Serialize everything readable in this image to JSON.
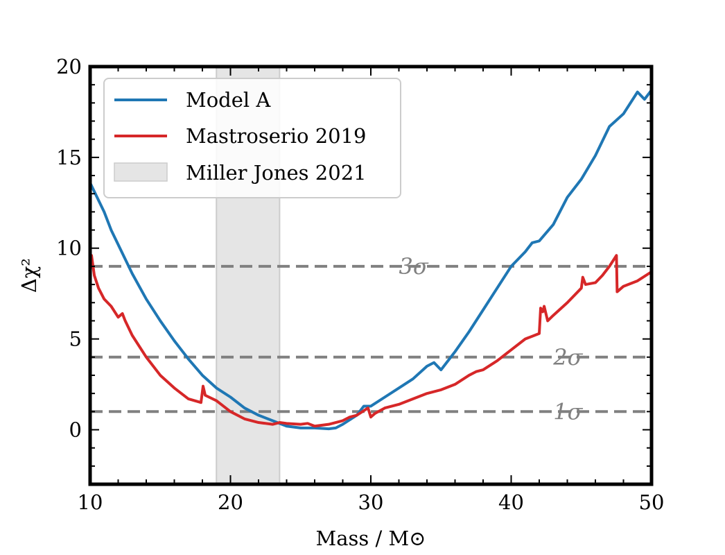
{
  "chart_data": {
    "type": "line",
    "title": "",
    "xlabel": "Mass / M⊙",
    "ylabel": "Δχ²",
    "xlim": [
      10,
      50
    ],
    "ylim": [
      -3,
      20
    ],
    "xticks": [
      10,
      20,
      30,
      40,
      50
    ],
    "yticks": [
      0,
      5,
      10,
      15,
      20
    ],
    "grid": false,
    "legend_position": "top-left",
    "series": [
      {
        "name": "Model A",
        "color": "#1f77b4",
        "x": [
          10,
          10.5,
          11,
          11.5,
          12,
          13,
          14,
          15,
          16,
          17,
          18,
          19,
          20,
          21,
          22,
          23,
          24,
          25,
          26,
          27,
          27.5,
          28,
          29,
          29.5,
          30,
          31,
          32,
          33,
          34,
          34.5,
          35,
          36,
          37,
          38,
          39,
          40,
          41,
          41.5,
          42,
          43,
          44,
          45,
          46,
          47,
          48,
          49,
          49.5,
          50
        ],
        "y": [
          13.6,
          12.8,
          12.0,
          11.0,
          10.2,
          8.6,
          7.2,
          6.0,
          4.9,
          3.9,
          3.0,
          2.3,
          1.8,
          1.2,
          0.8,
          0.5,
          0.2,
          0.1,
          0.1,
          0.05,
          0.1,
          0.3,
          0.8,
          1.3,
          1.3,
          1.8,
          2.3,
          2.8,
          3.5,
          3.7,
          3.3,
          4.3,
          5.4,
          6.6,
          7.8,
          9.0,
          9.8,
          10.3,
          10.4,
          11.3,
          12.8,
          13.8,
          15.1,
          16.7,
          17.4,
          18.6,
          18.2,
          18.7
        ]
      },
      {
        "name": "Mastroserio 2019",
        "color": "#d62728",
        "x": [
          10,
          10.1,
          10.3,
          10.6,
          11,
          11.5,
          12,
          12.3,
          12.5,
          13,
          14,
          15,
          16,
          17,
          17.9,
          18.05,
          18.2,
          19,
          20,
          21,
          22,
          23,
          23.5,
          24,
          25,
          25.5,
          26,
          27,
          28,
          28.5,
          29,
          29.8,
          30,
          30.3,
          31,
          32,
          33,
          34,
          35,
          36,
          37,
          37.5,
          38,
          39,
          40,
          41,
          42,
          42.1,
          42.25,
          42.35,
          42.6,
          43,
          44,
          45,
          45.1,
          45.3,
          46,
          46.5,
          47,
          47.5,
          47.55,
          47.7,
          48,
          49,
          50
        ],
        "y": [
          9.0,
          9.6,
          8.5,
          7.8,
          7.2,
          6.8,
          6.2,
          6.4,
          6.0,
          5.2,
          4.0,
          3.0,
          2.3,
          1.7,
          1.5,
          2.4,
          1.9,
          1.6,
          1.0,
          0.6,
          0.4,
          0.3,
          0.4,
          0.35,
          0.3,
          0.35,
          0.2,
          0.3,
          0.5,
          0.7,
          0.8,
          1.2,
          0.7,
          0.9,
          1.2,
          1.4,
          1.7,
          2.0,
          2.2,
          2.5,
          3.0,
          3.2,
          3.3,
          3.8,
          4.4,
          5.0,
          5.3,
          6.7,
          6.5,
          6.8,
          6.0,
          6.3,
          7.0,
          7.8,
          8.4,
          8.0,
          8.1,
          8.5,
          9.0,
          9.6,
          7.6,
          7.7,
          7.9,
          8.2,
          8.7
        ]
      }
    ],
    "shaded_region": {
      "label": "Miller Jones 2021",
      "x_range": [
        19,
        23.5
      ],
      "color": "#e5e5e5"
    },
    "reference_lines": [
      {
        "y": 9,
        "label": "3σ",
        "label_x": 32
      },
      {
        "y": 4,
        "label": "2σ",
        "label_x": 43
      },
      {
        "y": 1,
        "label": "1σ",
        "label_x": 43
      }
    ],
    "legend": [
      "Model A",
      "Mastroserio 2019",
      "Miller Jones 2021"
    ]
  }
}
